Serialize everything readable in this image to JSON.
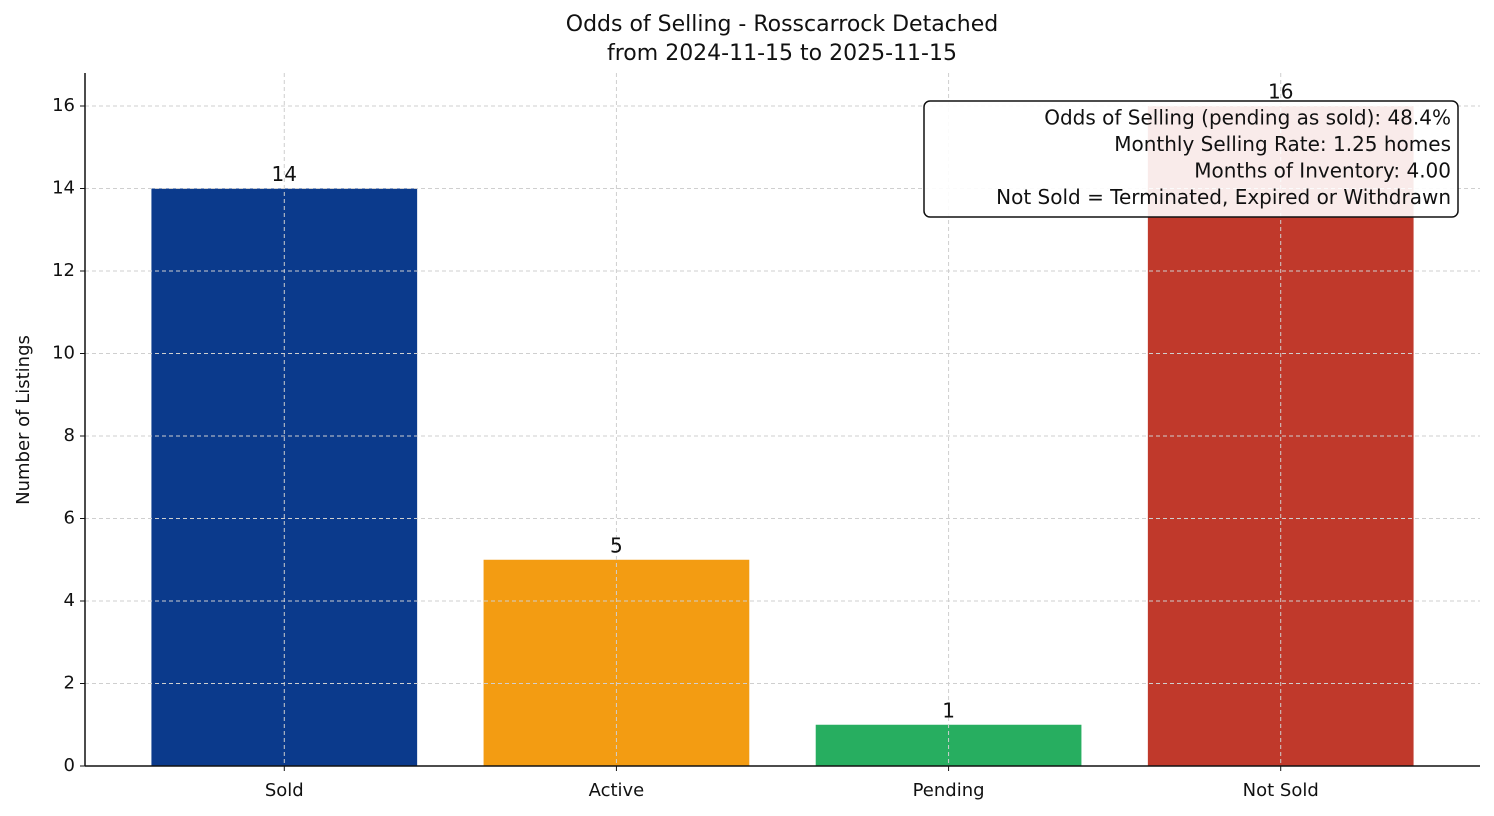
{
  "chart_data": {
    "type": "bar",
    "title": "Odds of Selling - Rosscarrock Detached",
    "subtitle": "from 2024-11-15 to 2025-11-15",
    "y_label": "Number of Listings",
    "categories": [
      "Sold",
      "Active",
      "Pending",
      "Not Sold"
    ],
    "values": [
      14,
      5,
      1,
      16
    ],
    "colors": [
      "#0b3a8c",
      "#f39c12",
      "#27ae60",
      "#c0392b"
    ],
    "ylim": [
      0,
      16.8
    ],
    "yticks": [
      0,
      2,
      4,
      6,
      8,
      10,
      12,
      14,
      16
    ],
    "grid": true,
    "annotation": [
      "Odds of Selling (pending as sold): 48.4%",
      "Monthly Selling Rate: 1.25 homes",
      "Months of Inventory: 4.00",
      "Not Sold = Terminated, Expired or Withdrawn"
    ],
    "annotation_corner": "upper right"
  }
}
